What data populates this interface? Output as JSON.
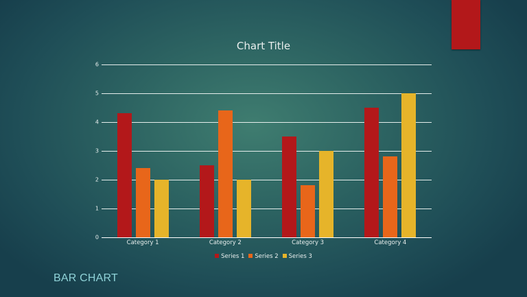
{
  "slide": {
    "title": "BAR CHART",
    "accent_color": "#b3181a"
  },
  "chart_data": {
    "type": "bar",
    "title": "Chart Title",
    "xlabel": "",
    "ylabel": "",
    "ylim": [
      0,
      6
    ],
    "yticks": [
      "0",
      "1",
      "2",
      "3",
      "4",
      "5",
      "6"
    ],
    "grid": true,
    "legend_position": "bottom",
    "categories": [
      "Category 1",
      "Category 2",
      "Category 3",
      "Category 4"
    ],
    "series": [
      {
        "name": "Series 1",
        "color": "#b3181a",
        "values": [
          4.3,
          2.5,
          3.5,
          4.5
        ]
      },
      {
        "name": "Series 2",
        "color": "#e8661a",
        "values": [
          2.4,
          4.4,
          1.8,
          2.8
        ]
      },
      {
        "name": "Series 3",
        "color": "#e6b42a",
        "values": [
          2,
          2,
          3,
          5
        ]
      }
    ]
  }
}
